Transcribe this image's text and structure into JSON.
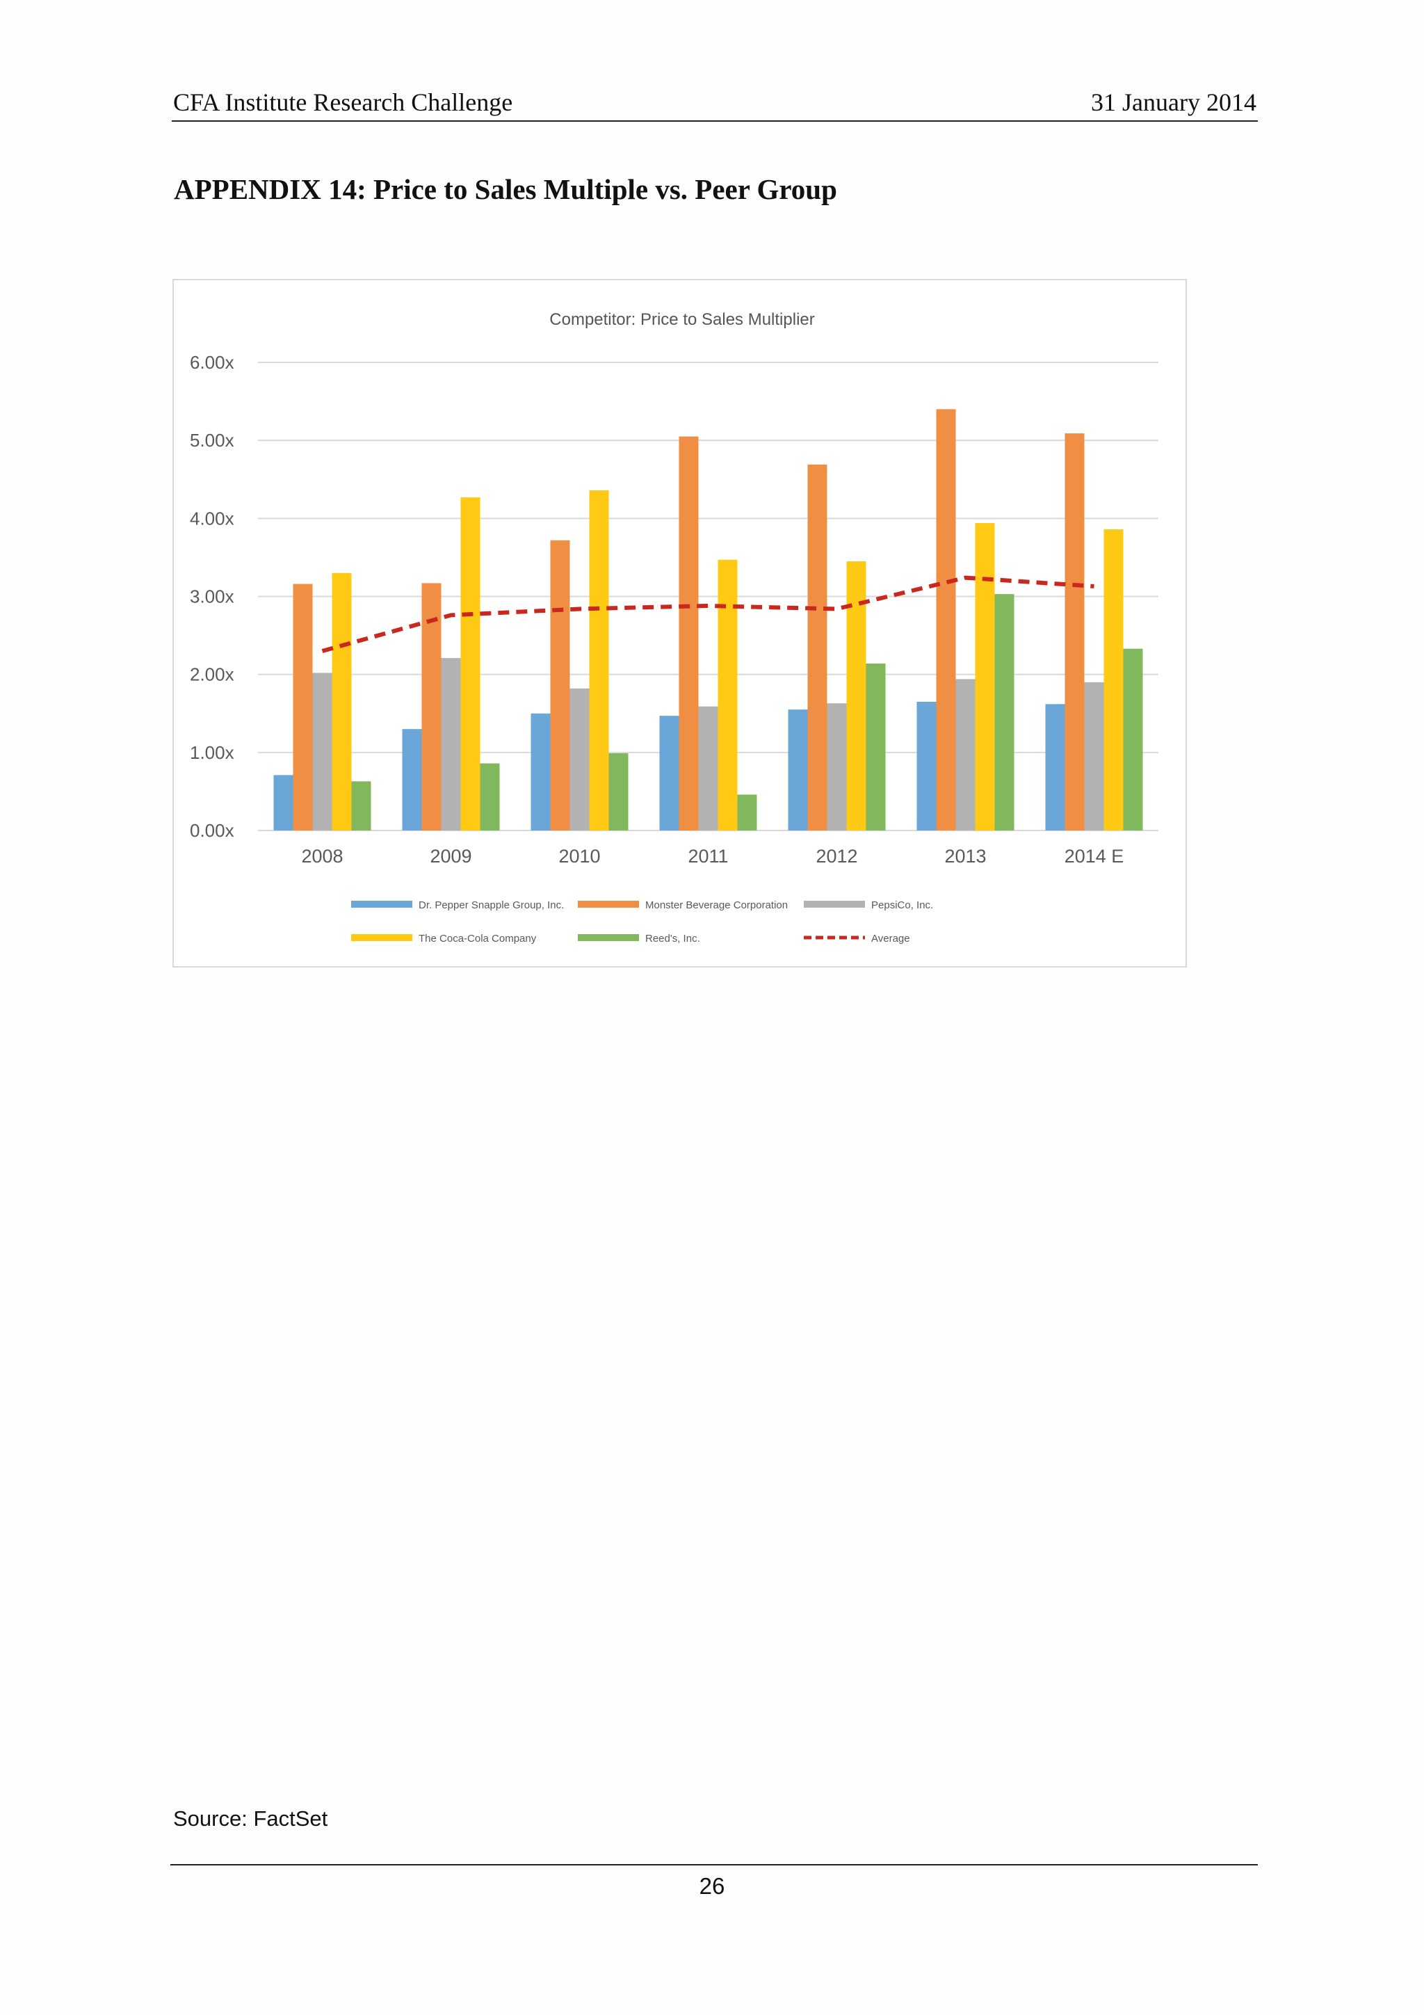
{
  "header": {
    "left": "CFA Institute Research Challenge",
    "right": "31 January 2014"
  },
  "page_title": "APPENDIX 14: Price to Sales Multiple vs. Peer Group",
  "chart_data": {
    "type": "bar",
    "title": "Competitor: Price to Sales Multiplier",
    "xlabel": "",
    "ylabel": "",
    "ylim": [
      0,
      6
    ],
    "yticks": [
      "0.00x",
      "1.00x",
      "2.00x",
      "3.00x",
      "4.00x",
      "5.00x",
      "6.00x"
    ],
    "grid": true,
    "legend_position": "bottom",
    "categories": [
      "2008",
      "2009",
      "2010",
      "2011",
      "2012",
      "2013",
      "2014 E"
    ],
    "series": [
      {
        "name": "Dr. Pepper Snapple Group, Inc.",
        "type": "bar",
        "color": "#6aa7d8",
        "values": [
          0.71,
          1.3,
          1.5,
          1.47,
          1.55,
          1.65,
          1.62
        ]
      },
      {
        "name": "Monster Beverage Corporation",
        "type": "bar",
        "color": "#f08f44",
        "values": [
          3.16,
          3.17,
          3.72,
          5.05,
          4.69,
          5.4,
          5.09
        ]
      },
      {
        "name": "PepsiCo, Inc.",
        "type": "bar",
        "color": "#b2b2b2",
        "values": [
          2.02,
          2.21,
          1.82,
          1.59,
          1.63,
          1.94,
          1.9
        ]
      },
      {
        "name": "The Coca-Cola Company",
        "type": "bar",
        "color": "#ffc914",
        "values": [
          3.3,
          4.27,
          4.36,
          3.47,
          3.45,
          3.94,
          3.86
        ]
      },
      {
        "name": "Reed's, Inc.",
        "type": "bar",
        "color": "#82b85d",
        "values": [
          0.63,
          0.86,
          0.99,
          0.46,
          2.14,
          3.03,
          2.33
        ]
      },
      {
        "name": "Average",
        "type": "line",
        "color": "#c8281e",
        "dashed": true,
        "values": [
          2.3,
          2.76,
          2.84,
          2.88,
          2.84,
          3.24,
          3.13
        ]
      }
    ]
  },
  "source_note": "Source: FactSet",
  "page_number": "26"
}
